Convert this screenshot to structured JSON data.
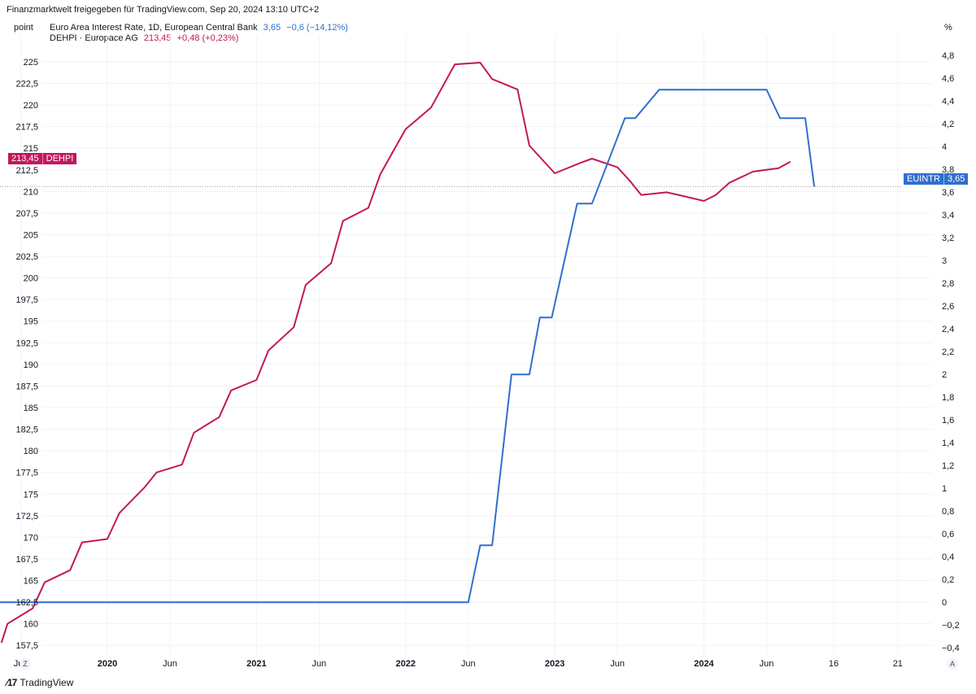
{
  "header": {
    "title": "Finanzmarktwelt freigegeben für TradingView.com, Sep 20, 2024 13:10 UTC+2",
    "unit_left": "point",
    "unit_right": "%"
  },
  "legend": {
    "series1_label": "Euro Area Interest Rate, 1D, European Central Bank",
    "series1_value": "3,65",
    "series1_change": "−0,6 (−14,12%)",
    "series2_label": "DEHPI · Europace AG",
    "series2_value": "213,45",
    "series2_change": "+0,48 (+0,23%)"
  },
  "tags": {
    "dehpi_value": "213,45",
    "dehpi_name": "DEHPI",
    "euintr_name": "EUINTR",
    "euintr_value": "3,65"
  },
  "footer": {
    "logo_text": "TradingView",
    "left_button": "Z",
    "right_button": "A"
  },
  "colors": {
    "red": "#c2185b",
    "blue": "#2f6fcf",
    "grid": "#f0f3fa"
  },
  "chart_data": {
    "type": "line",
    "x_tick_labels": [
      "Jun",
      "2020",
      "Jun",
      "2021",
      "Jun",
      "2022",
      "Jun",
      "2023",
      "Jun",
      "2024",
      "Jun",
      "16",
      "21"
    ],
    "x_tick_dates": [
      2019.42,
      2020.0,
      2020.42,
      2021.0,
      2021.42,
      2022.0,
      2022.42,
      2023.0,
      2023.42,
      2024.0,
      2024.42,
      2024.87,
      2025.3
    ],
    "x_range": [
      2019.28,
      2025.53
    ],
    "y_left": {
      "ticks": [
        "157,5",
        "160",
        "162,5",
        "165",
        "167,5",
        "170",
        "172,5",
        "175",
        "177,5",
        "180",
        "182,5",
        "185",
        "187,5",
        "190",
        "192,5",
        "195",
        "197,5",
        "200",
        "202,5",
        "205",
        "207,5",
        "210",
        "212,5",
        "215",
        "217,5",
        "220",
        "222,5",
        "225"
      ],
      "range": [
        156.3,
        228.1
      ]
    },
    "y_right": {
      "ticks": [
        "−0,4",
        "−0,2",
        "0",
        "0,2",
        "0,4",
        "0,6",
        "0,8",
        "1",
        "1,2",
        "1,4",
        "1,6",
        "1,8",
        "2",
        "2,2",
        "2,4",
        "2,6",
        "2,8",
        "3",
        "3,2",
        "3,4",
        "3,6",
        "3,8",
        "4",
        "4,2",
        "4,4",
        "4,6",
        "4,8"
      ],
      "range": [
        -0.47,
        4.98
      ]
    },
    "series": [
      {
        "name": "DEHPI · Europace AG",
        "axis": "left",
        "color": "#c2185b",
        "points": [
          [
            2019.29,
            157.8
          ],
          [
            2019.33,
            160.0
          ],
          [
            2019.5,
            161.8
          ],
          [
            2019.58,
            164.8
          ],
          [
            2019.75,
            166.2
          ],
          [
            2019.83,
            169.4
          ],
          [
            2020.0,
            169.8
          ],
          [
            2020.08,
            172.8
          ],
          [
            2020.25,
            175.8
          ],
          [
            2020.33,
            177.5
          ],
          [
            2020.5,
            178.4
          ],
          [
            2020.58,
            182.1
          ],
          [
            2020.75,
            183.9
          ],
          [
            2020.83,
            187.0
          ],
          [
            2021.0,
            188.2
          ],
          [
            2021.08,
            191.6
          ],
          [
            2021.25,
            194.3
          ],
          [
            2021.33,
            199.2
          ],
          [
            2021.5,
            201.7
          ],
          [
            2021.58,
            206.6
          ],
          [
            2021.75,
            208.1
          ],
          [
            2021.83,
            212.0
          ],
          [
            2022.0,
            217.2
          ],
          [
            2022.17,
            219.7
          ],
          [
            2022.33,
            224.7
          ],
          [
            2022.5,
            224.9
          ],
          [
            2022.58,
            223.0
          ],
          [
            2022.75,
            221.8
          ],
          [
            2022.83,
            215.3
          ],
          [
            2023.0,
            212.1
          ],
          [
            2023.17,
            213.3
          ],
          [
            2023.25,
            213.8
          ],
          [
            2023.42,
            212.8
          ],
          [
            2023.5,
            211.3
          ],
          [
            2023.58,
            209.6
          ],
          [
            2023.75,
            209.9
          ],
          [
            2023.83,
            209.6
          ],
          [
            2024.0,
            208.9
          ],
          [
            2024.08,
            209.6
          ],
          [
            2024.17,
            211.0
          ],
          [
            2024.33,
            212.3
          ],
          [
            2024.5,
            212.7
          ],
          [
            2024.58,
            213.45
          ]
        ]
      },
      {
        "name": "Euro Area Interest Rate, 1D, European Central Bank",
        "axis": "right",
        "color": "#2f6fcf",
        "points": [
          [
            2019.28,
            0.0
          ],
          [
            2022.42,
            0.0
          ],
          [
            2022.5,
            0.5
          ],
          [
            2022.58,
            0.5
          ],
          [
            2022.71,
            2.0
          ],
          [
            2022.83,
            2.0
          ],
          [
            2022.9,
            2.5
          ],
          [
            2022.98,
            2.5
          ],
          [
            2023.15,
            3.5
          ],
          [
            2023.25,
            3.5
          ],
          [
            2023.47,
            4.25
          ],
          [
            2023.54,
            4.25
          ],
          [
            2023.7,
            4.5
          ],
          [
            2024.42,
            4.5
          ],
          [
            2024.51,
            4.25
          ],
          [
            2024.68,
            4.25
          ],
          [
            2024.74,
            3.65
          ]
        ]
      }
    ],
    "last_value_line": {
      "axis": "right",
      "value": 3.65
    }
  }
}
